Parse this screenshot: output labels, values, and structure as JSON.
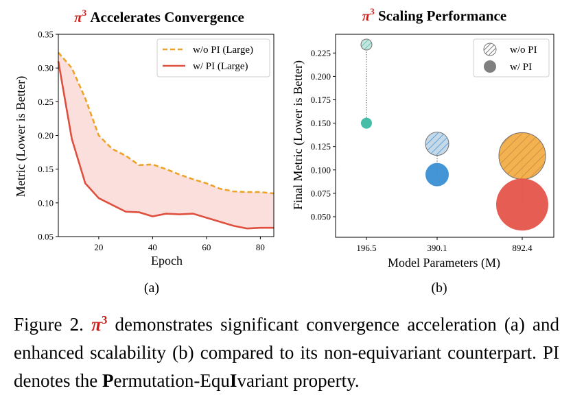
{
  "colors": {
    "pi_red": "#cc1f1a",
    "wo_line": "#eea228",
    "w_line": "#df4f3e",
    "fill": "#f9d4d2",
    "teal": "#3cb9a1",
    "blue": "#3a8fd4",
    "orange": "#f2a83e",
    "red": "#e5554a"
  },
  "chart_data": [
    {
      "type": "line",
      "title_symbol": "π",
      "title_exponent": "3",
      "title": "Accelerates Convergence",
      "xlabel": "Epoch",
      "ylabel": "Metric (Lower is Better)",
      "panel_label": "(a)",
      "xlim": [
        5,
        85
      ],
      "ylim": [
        0.05,
        0.35
      ],
      "x_ticks": [
        20,
        40,
        60,
        80
      ],
      "y_ticks": [
        "0.05",
        "0.10",
        "0.15",
        "0.20",
        "0.25",
        "0.30",
        "0.35"
      ],
      "grid": false,
      "legend_position": "top-right",
      "fill_between_series": true,
      "series": [
        {
          "name": "w/o PI (Large)",
          "style": "dashed",
          "x": [
            5,
            10,
            15,
            20,
            25,
            30,
            35,
            40,
            45,
            50,
            55,
            60,
            65,
            70,
            75,
            80,
            85
          ],
          "values": [
            0.323,
            0.3,
            0.255,
            0.2,
            0.18,
            0.17,
            0.156,
            0.157,
            0.15,
            0.142,
            0.135,
            0.129,
            0.121,
            0.117,
            0.116,
            0.116,
            0.114
          ]
        },
        {
          "name": "w/ PI (Large)",
          "style": "solid",
          "x": [
            5,
            10,
            15,
            20,
            25,
            30,
            35,
            40,
            45,
            50,
            55,
            60,
            65,
            70,
            75,
            80,
            85
          ],
          "values": [
            0.31,
            0.195,
            0.129,
            0.107,
            0.097,
            0.087,
            0.086,
            0.08,
            0.084,
            0.083,
            0.084,
            0.078,
            0.072,
            0.066,
            0.062,
            0.063,
            0.063
          ]
        }
      ]
    },
    {
      "type": "scatter",
      "title_symbol": "π",
      "title_exponent": "3",
      "title": "Scaling Performance",
      "xlabel": "Model Parameters (M)",
      "ylabel": "Final Metric (Lower is Better)",
      "panel_label": "(b)",
      "categories": [
        "196.5",
        "390.1",
        "892.4"
      ],
      "ylim": [
        0.028,
        0.245
      ],
      "y_ticks": [
        "0.050",
        "0.075",
        "0.100",
        "0.125",
        "0.150",
        "0.175",
        "0.200",
        "0.225"
      ],
      "grid": false,
      "legend_position": "top-right",
      "marker_size_encodes": "model parameters",
      "series": [
        {
          "name": "w/o PI",
          "style": "hatched",
          "values": [
            0.234,
            0.128,
            0.115
          ]
        },
        {
          "name": "w/ PI",
          "style": "solid",
          "values": [
            0.15,
            0.095,
            0.063
          ]
        }
      ]
    }
  ],
  "caption": {
    "prefix": "Figure 2. ",
    "symbol": "π",
    "exponent": "3",
    "part1": " demonstrates significant convergence acceleration (a) and enhanced scalability (b) compared to its non-equivariant counterpart. PI denotes the ",
    "bold1": "P",
    "part2": "ermutation-Equ",
    "bold2": "I",
    "part3": "variant property."
  }
}
